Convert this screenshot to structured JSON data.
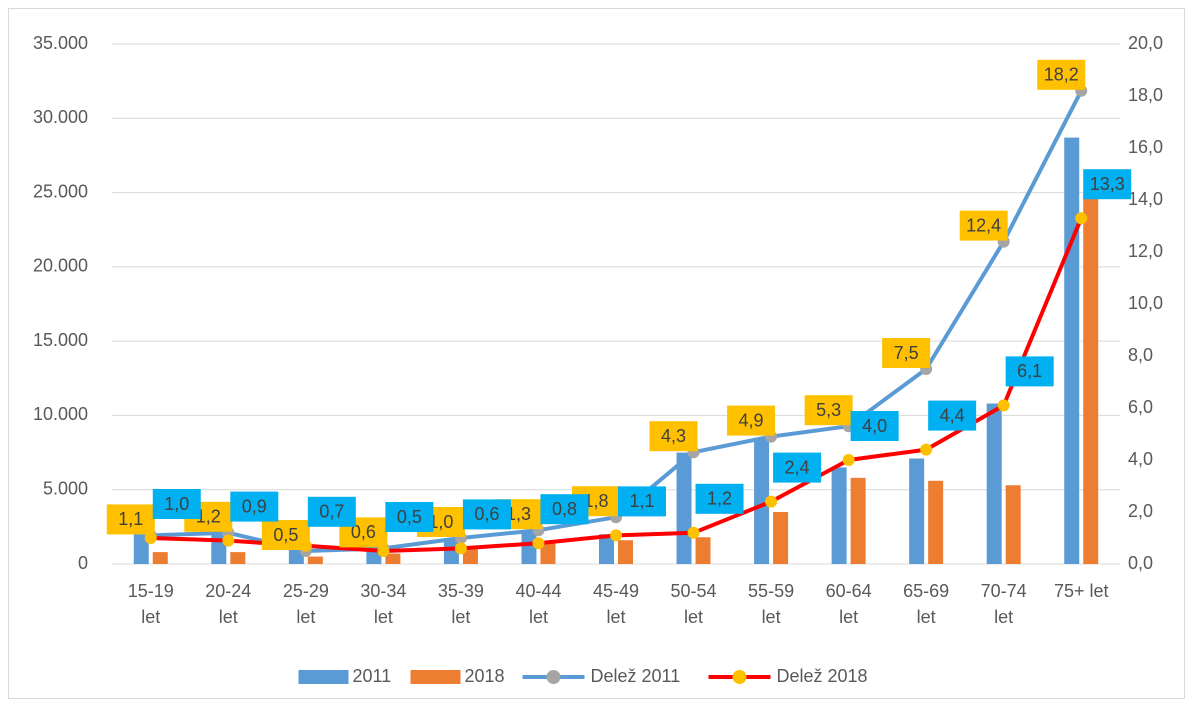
{
  "chart_data": {
    "type": "bar_line",
    "categories": [
      "15-19 let",
      "20-24 let",
      "25-29 let",
      "30-34 let",
      "35-39 let",
      "40-44 let",
      "45-49 let",
      "50-54 let",
      "55-59 let",
      "60-64 let",
      "65-69 let",
      "70-74 let",
      "75+ let"
    ],
    "series": [
      {
        "name": "2011",
        "type": "bar",
        "color": "#5b9bd5",
        "values": [
          2000,
          2000,
          1000,
          1000,
          1700,
          2200,
          2000,
          7500,
          8500,
          6500,
          7100,
          10800,
          28700
        ]
      },
      {
        "name": "2018",
        "type": "bar",
        "color": "#ed7d31",
        "values": [
          800,
          800,
          500,
          700,
          1000,
          1400,
          1600,
          1800,
          3500,
          5800,
          5600,
          5300,
          24900
        ]
      },
      {
        "name": "Delež 2011",
        "type": "line",
        "axis": "y2",
        "color": "#5b9bd5",
        "marker_color": "#a5a5a5",
        "label_color": "#ffc000",
        "values": [
          1.1,
          1.2,
          0.5,
          0.6,
          1.0,
          1.3,
          1.8,
          4.3,
          4.9,
          5.3,
          7.5,
          12.4,
          18.2
        ],
        "value_labels": [
          "1,1",
          "1,2",
          "0,5",
          "0,6",
          "1,0",
          "1,3",
          "1,8",
          "4,3",
          "4,9",
          "5,3",
          "7,5",
          "12,4",
          "18,2"
        ]
      },
      {
        "name": "Delež 2018",
        "type": "line",
        "axis": "y2",
        "color": "#ff0000",
        "marker_color": "#ffc000",
        "label_color": "#00b0f0",
        "values": [
          1.0,
          0.9,
          0.7,
          0.5,
          0.6,
          0.8,
          1.1,
          1.2,
          2.4,
          4.0,
          4.4,
          6.1,
          13.3
        ],
        "value_labels": [
          "1,0",
          "0,9",
          "0,7",
          "0,5",
          "0,6",
          "0,8",
          "1,1",
          "1,2",
          "2,4",
          "4,0",
          "4,4",
          "6,1",
          "13,3"
        ]
      }
    ],
    "ylim": [
      0,
      35000
    ],
    "yticks": [
      0,
      {
        "value": 5000,
        "label": "5.000"
      },
      {
        "value": 10000,
        "label": "10.000"
      },
      {
        "value": 15000,
        "label": "15.000"
      },
      {
        "value": 20000,
        "label": "20.000"
      },
      {
        "value": 25000,
        "label": "25.000"
      },
      {
        "value": 30000,
        "label": "30.000"
      },
      {
        "value": 35000,
        "label": "35.000"
      }
    ],
    "y2lim": [
      0,
      20
    ],
    "y2ticks": [
      {
        "value": 0,
        "label": "0,0"
      },
      {
        "value": 2,
        "label": "2,0"
      },
      {
        "value": 4,
        "label": "4,0"
      },
      {
        "value": 6,
        "label": "6,0"
      },
      {
        "value": 8,
        "label": "8,0"
      },
      {
        "value": 10,
        "label": "10,0"
      },
      {
        "value": 12,
        "label": "12,0"
      },
      {
        "value": 14,
        "label": "14,0"
      },
      {
        "value": 16,
        "label": "16,0"
      },
      {
        "value": 18,
        "label": "18,0"
      },
      {
        "value": 20,
        "label": "20,0"
      }
    ],
    "grid": true,
    "legend": "bottom"
  }
}
